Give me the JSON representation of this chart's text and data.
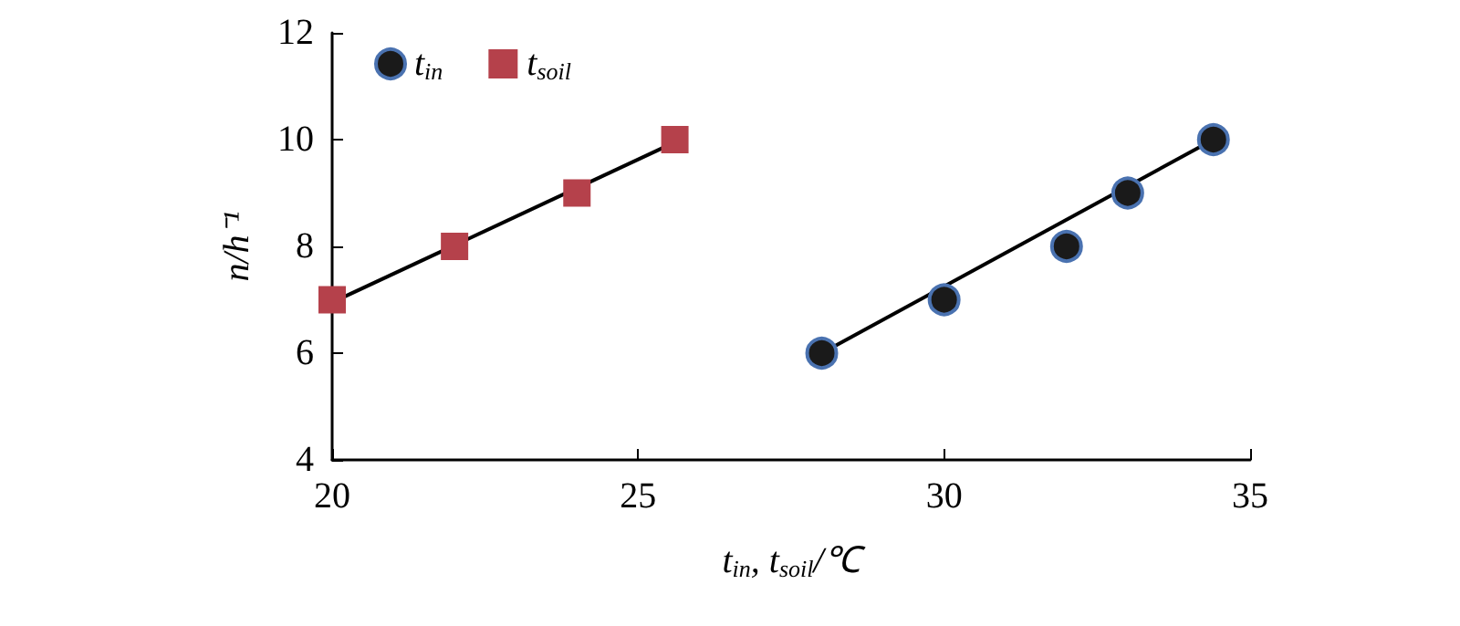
{
  "chart_data": {
    "type": "scatter",
    "xlabel": "t$_{in}$, t$_{soil}$/℃",
    "ylabel": "n/h⁻¹",
    "xlim": [
      20,
      35
    ],
    "xticks": [
      20,
      25,
      30,
      35
    ],
    "ylim": [
      4,
      12
    ],
    "yticks": [
      4,
      6,
      8,
      10,
      12
    ],
    "grid": false,
    "legend": "top left",
    "series": [
      {
        "name": "t$_{in}$",
        "color": "#1a1a1a",
        "marker": "circle",
        "x": [
          28,
          30,
          32,
          33,
          34.4
        ],
        "values": [
          6,
          7,
          8,
          9,
          10
        ]
      },
      {
        "name": "t$_{soil}$",
        "color": "#b5414b",
        "marker": "square",
        "x": [
          20,
          22,
          24,
          25.6
        ],
        "values": [
          7,
          8,
          9,
          10
        ]
      },
      {
        "type": "line",
        "color": "#000000",
        "marker": "none",
        "x": [
          28,
          34.4
        ],
        "values": [
          6,
          10
        ]
      },
      {
        "type": "line",
        "color": "#000000",
        "marker": "none",
        "x": [
          20,
          25.6
        ],
        "values": [
          6.95,
          9.95
        ]
      }
    ]
  }
}
